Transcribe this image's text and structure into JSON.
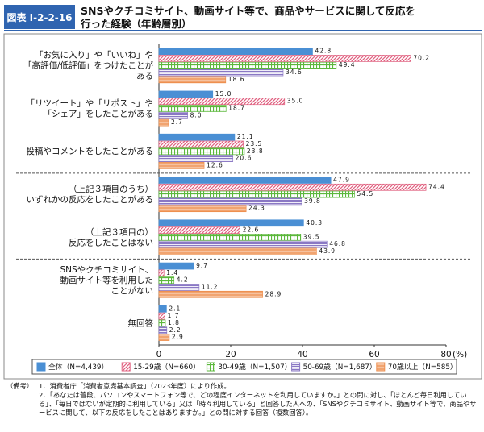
{
  "chart_data": {
    "type": "hbar",
    "figure_number": "図表 I-2-2-16",
    "title": [
      "SNSやクチコミサイト、動画サイト等で、商品やサービスに関して反応を",
      "行った経験（年齢層別）"
    ],
    "categories": [
      [
        "「お気に入り」や「いいね」や",
        "「高評価/低評価」をつけたことが",
        "ある"
      ],
      [
        "「リツイート」や「リポスト」や",
        "「シェア」をしたことがある"
      ],
      [
        "投稿やコメントをしたことがある"
      ],
      [
        "（上記３項目のうち）",
        "いずれかの反応をしたことがある"
      ],
      [
        "（上記３項目の）",
        "反応をしたことはない"
      ],
      [
        "SNSやクチコミサイト、",
        "動画サイト等を利用した",
        "ことがない"
      ],
      [
        "無回答"
      ]
    ],
    "series": [
      {
        "name": "全体（N=4,439）",
        "color": "#4a8fd4",
        "pattern": "solid",
        "values": [
          42.8,
          15.0,
          21.1,
          47.9,
          40.3,
          9.7,
          2.1
        ],
        "value_labels": [
          "42.8",
          "15.0",
          "21.1",
          "47.9",
          "40.3",
          "9.7",
          "2.1"
        ]
      },
      {
        "name": "15-29歳（N=660）",
        "color": "#e0607f",
        "pattern": "diagonal",
        "values": [
          70.2,
          35.0,
          23.5,
          74.4,
          22.6,
          1.4,
          1.7
        ],
        "value_labels": [
          "70.2",
          "35.0",
          "23.5",
          "74.4",
          "22.6",
          "1.4",
          "1.7"
        ]
      },
      {
        "name": "30-49歳（N=1,507）",
        "color": "#5cb83c",
        "pattern": "grid",
        "values": [
          49.4,
          18.7,
          23.8,
          54.5,
          39.5,
          4.2,
          1.8
        ],
        "value_labels": [
          "49.4",
          "18.7",
          "23.8",
          "54.5",
          "39.5",
          "4.2",
          "1.8"
        ]
      },
      {
        "name": "50-69歳（N=1,687）",
        "color": "#8a78c4",
        "pattern": "horizontal",
        "values": [
          34.6,
          8.0,
          20.6,
          39.8,
          46.8,
          11.2,
          2.2
        ],
        "value_labels": [
          "34.6",
          "8.0",
          "20.6",
          "39.8",
          "46.8",
          "11.2",
          "2.2"
        ]
      },
      {
        "name": "70歳以上（N=585）",
        "color": "#ee9050",
        "pattern": "dots",
        "values": [
          18.6,
          2.7,
          12.6,
          24.3,
          43.9,
          28.9,
          2.9
        ],
        "value_labels": [
          "18.6",
          "2.7",
          "12.6",
          "24.3",
          "43.9",
          "28.9",
          "2.9"
        ]
      }
    ],
    "xlim": [
      0,
      80
    ],
    "xticks": [
      0,
      20,
      40,
      60,
      80
    ],
    "x_unit": "(%)",
    "grid": false,
    "legend": "bottom",
    "notes": {
      "heading": "（備考）",
      "items": [
        "1．消費者庁「消費者意識基本調査」（2023年度）により作成。",
        "2．「あなたは普段、パソコンやスマートフォン等で、どの程度インターネットを利用していますか。」との問に対し、「ほとんど毎日利用している」、「毎日ではないが定期的に利用している」又は「時々利用している」と回答した人への、「SNSやクチコミサイト、動画サイト等で、商品やサービスに関して、以下の反応をしたことはありますか。」との問に対する回答（複数回答）。"
      ]
    }
  }
}
